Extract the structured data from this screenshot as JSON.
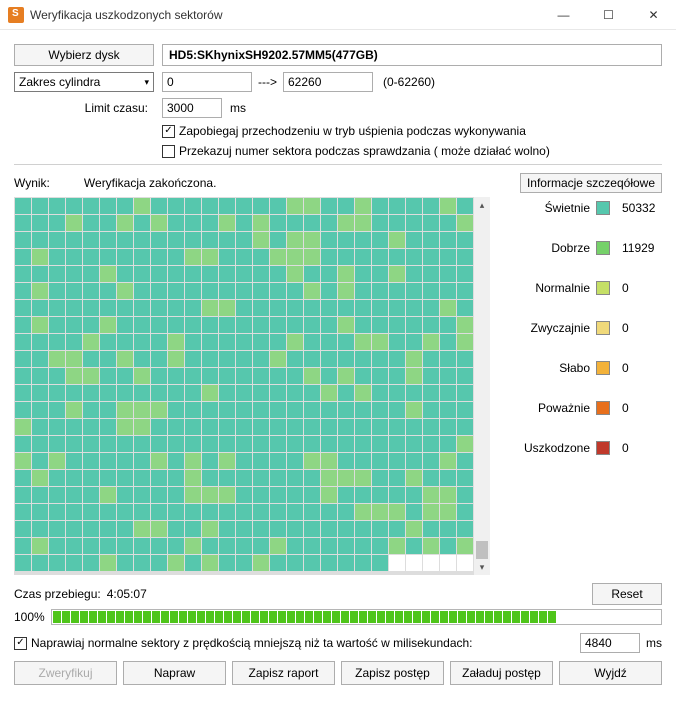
{
  "window": {
    "title": "Weryfikacja uszkodzonych sektorów"
  },
  "toolbar": {
    "select_disk": "Wybierz dysk",
    "disk_label": "HD5:SKhynixSH9202.57MM5(477GB)"
  },
  "cylinder": {
    "range_label": "Zakres cylindra",
    "from": "0",
    "arrow": "--->",
    "to": "62260",
    "hint": "(0-62260)"
  },
  "limit": {
    "label": "Limit czasu:",
    "value": "3000",
    "unit": "ms"
  },
  "opts": {
    "prevent_sleep": "Zapobiegaj przechodzeniu w tryb uśpienia podczas wykonywania",
    "pass_sector": "Przekazuj numer sektora podczas sprawdzania ( może działać wolno)"
  },
  "result": {
    "label": "Wynik:",
    "status": "Weryfikacja zakończona.",
    "details_btn": "Informacje szczeqółowe"
  },
  "legend": {
    "items": [
      {
        "label": "Świetnie",
        "color": "#56c7ad",
        "value": "50332"
      },
      {
        "label": "Dobrze",
        "color": "#76d16a",
        "value": "11929"
      },
      {
        "label": "Normalnie",
        "color": "#c5df66",
        "value": "0"
      },
      {
        "label": "Zwyczajnie",
        "color": "#f0d97a",
        "value": "0"
      },
      {
        "label": "Słabo",
        "color": "#f3b23a",
        "value": "0"
      },
      {
        "label": "Poważnie",
        "color": "#e76f1c",
        "value": "0"
      },
      {
        "label": "Uszkodzone",
        "color": "#c0392b",
        "value": "0"
      }
    ]
  },
  "grid": {
    "cols": 27,
    "rows": 22,
    "last_row_filled": 22,
    "colors": {
      "excellent": "#56c7ad",
      "good": "#8ed684"
    },
    "good_ratio": 0.19
  },
  "elapsed": {
    "label": "Czas przebiegu:",
    "value": "4:05:07",
    "reset": "Reset"
  },
  "progress": {
    "percent": "100%",
    "fill": 100
  },
  "repair": {
    "label": "Naprawiaj normalne sektory z prędkością mniejszą niż ta wartość w milisekundach:",
    "value": "4840",
    "unit": "ms"
  },
  "buttons": {
    "verify": "Zweryfikuj",
    "repair": "Napraw",
    "save_report": "Zapisz raport",
    "save_progress": "Zapisz postęp",
    "load_progress": "Załaduj postęp",
    "exit": "Wyjdź"
  }
}
